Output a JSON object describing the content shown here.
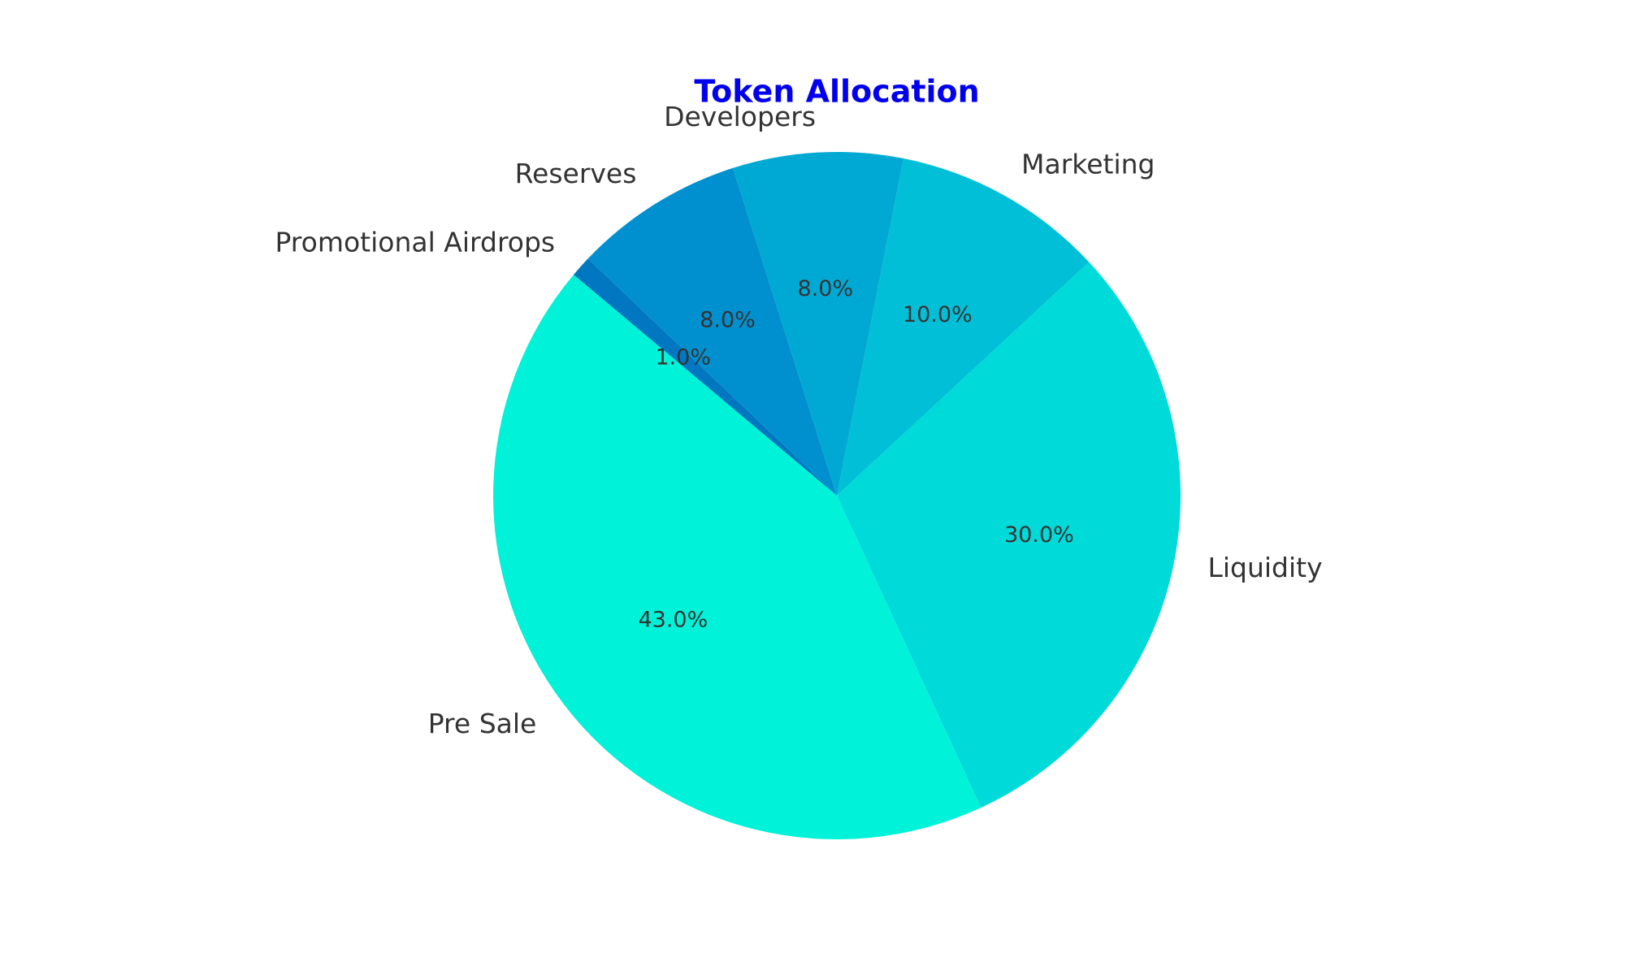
{
  "chart_data": {
    "type": "pie",
    "title": "Token Allocation",
    "title_color": "#0000ee",
    "start_angle_deg": 140,
    "direction": "clockwise",
    "slices": [
      {
        "label": "Promotional Airdrops",
        "value": 1.0,
        "pct_text": "1.0%",
        "color": "#0077c0"
      },
      {
        "label": "Reserves",
        "value": 8.0,
        "pct_text": "8.0%",
        "color": "#0090d0"
      },
      {
        "label": "Developers",
        "value": 8.0,
        "pct_text": "8.0%",
        "color": "#00a9d4"
      },
      {
        "label": "Marketing",
        "value": 10.0,
        "pct_text": "10.0%",
        "color": "#00bfd6"
      },
      {
        "label": "Liquidity",
        "value": 30.0,
        "pct_text": "30.0%",
        "color": "#00dad8"
      },
      {
        "label": "Pre Sale",
        "value": 43.0,
        "pct_text": "43.0%",
        "color": "#00f2d9"
      }
    ]
  }
}
